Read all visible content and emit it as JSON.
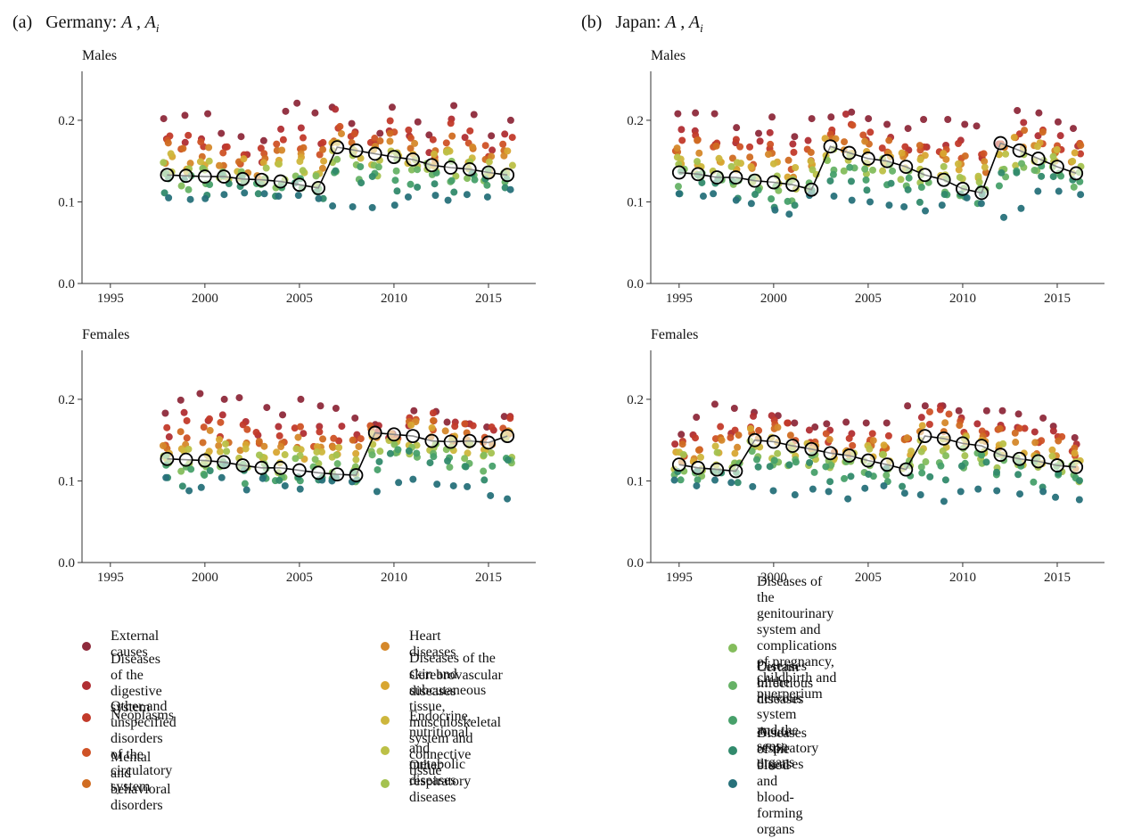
{
  "panels": [
    {
      "tag": "(a)",
      "title": "Germany: ",
      "title_symbols": "A , A",
      "title_sub": "i",
      "subpanels": [
        "Males",
        "Females"
      ]
    },
    {
      "tag": "(b)",
      "title": "Japan: ",
      "title_symbols": "A , A",
      "title_sub": "i",
      "subpanels": [
        "Males",
        "Females"
      ]
    }
  ],
  "legend": [
    {
      "label": "External causes",
      "color": "#8e2a3b"
    },
    {
      "label": "Diseases of the digestive system",
      "color": "#b02e33"
    },
    {
      "label": "Neoplasms",
      "color": "#c23a2a"
    },
    {
      "label": "Other and unspecified disorders of the\ncirculatory system",
      "color": "#cf5226"
    },
    {
      "label": "Mental and behavioral disorders",
      "color": "#d06c22"
    },
    {
      "label": "Heart diseases",
      "color": "#d5882a"
    },
    {
      "label": "Cerebrovascular diseases",
      "color": "#d8a631"
    },
    {
      "label": "Diseases of the skin and subcutaneous tissue,\nmusculoskeletal system and connective tissue",
      "color": "#cdb63c"
    },
    {
      "label": "Endocrine, nutritional and metabolic diseases",
      "color": "#bcc046"
    },
    {
      "label": "Other respiratory diseases",
      "color": "#a4c250"
    },
    {
      "label": "Diseases of the genitourinary system and\ncomplications of pregnancy, childbirth and\npuerperium",
      "color": "#84bd5c"
    },
    {
      "label": "Certain infectious diseases",
      "color": "#66b266"
    },
    {
      "label": "Diseases of the nervous system and the sense\norgans",
      "color": "#47a06a"
    },
    {
      "label": "Acute respiratory diseases",
      "color": "#318a6c"
    },
    {
      "label": "Diseases of the blood and blood-forming organs",
      "color": "#27717a"
    }
  ],
  "chart_data": [
    {
      "type": "scatter",
      "title": "Germany: A , Ai — Males",
      "xlim": [
        1993.5,
        2017.5
      ],
      "ylim": [
        0.0,
        0.26
      ],
      "xticks": [
        1995,
        2000,
        2005,
        2010,
        2015
      ],
      "yticks": [
        "0.0",
        "0.1",
        "0.2"
      ],
      "x": [
        1998,
        1999,
        2000,
        2001,
        2002,
        2003,
        2004,
        2005,
        2006,
        2007,
        2008,
        2009,
        2010,
        2011,
        2012,
        2013,
        2014,
        2015,
        2016
      ],
      "aggregate_A": [
        0.133,
        0.132,
        0.131,
        0.131,
        0.128,
        0.127,
        0.125,
        0.121,
        0.117,
        0.167,
        0.163,
        0.159,
        0.155,
        0.152,
        0.145,
        0.142,
        0.14,
        0.136,
        0.133
      ],
      "cause_min": [
        0.105,
        0.103,
        0.104,
        0.109,
        0.111,
        0.11,
        0.107,
        0.108,
        0.104,
        0.095,
        0.094,
        0.093,
        0.096,
        0.106,
        0.108,
        0.102,
        0.109,
        0.106,
        0.115
      ],
      "cause_max": [
        0.202,
        0.206,
        0.208,
        0.184,
        0.18,
        0.175,
        0.211,
        0.221,
        0.209,
        0.216,
        0.196,
        0.184,
        0.216,
        0.198,
        0.182,
        0.218,
        0.207,
        0.181,
        0.2
      ]
    },
    {
      "type": "scatter",
      "title": "Germany: A , Ai — Females",
      "xlim": [
        1993.5,
        2017.5
      ],
      "ylim": [
        0.0,
        0.26
      ],
      "xticks": [
        1995,
        2000,
        2005,
        2010,
        2015
      ],
      "yticks": [
        "0.0",
        "0.1",
        "0.2"
      ],
      "x": [
        1998,
        1999,
        2000,
        2001,
        2002,
        2003,
        2004,
        2005,
        2006,
        2007,
        2008,
        2009,
        2010,
        2011,
        2012,
        2013,
        2014,
        2015,
        2016
      ],
      "aggregate_A": [
        0.127,
        0.126,
        0.125,
        0.123,
        0.119,
        0.116,
        0.116,
        0.113,
        0.11,
        0.108,
        0.107,
        0.159,
        0.157,
        0.155,
        0.149,
        0.148,
        0.149,
        0.147,
        0.155
      ],
      "cause_min": [
        0.104,
        0.088,
        0.092,
        0.104,
        0.089,
        0.103,
        0.094,
        0.09,
        0.101,
        0.1,
        0.099,
        0.087,
        0.098,
        0.102,
        0.096,
        0.094,
        0.093,
        0.082,
        0.078
      ],
      "cause_max": [
        0.183,
        0.199,
        0.207,
        0.2,
        0.202,
        0.19,
        0.181,
        0.2,
        0.192,
        0.189,
        0.177,
        0.169,
        0.158,
        0.186,
        0.185,
        0.172,
        0.17,
        0.166,
        0.179
      ]
    },
    {
      "type": "scatter",
      "title": "Japan: A , Ai — Males",
      "xlim": [
        1993.5,
        2017.5
      ],
      "ylim": [
        0.0,
        0.26
      ],
      "xticks": [
        1995,
        2000,
        2005,
        2010,
        2015
      ],
      "yticks": [
        "0.0",
        "0.1",
        "0.2"
      ],
      "x": [
        1995,
        1996,
        1997,
        1998,
        1999,
        2000,
        2001,
        2002,
        2003,
        2004,
        2005,
        2006,
        2007,
        2008,
        2009,
        2010,
        2011,
        2012,
        2013,
        2014,
        2015,
        2016
      ],
      "aggregate_A": [
        0.136,
        0.134,
        0.13,
        0.13,
        0.126,
        0.124,
        0.121,
        0.115,
        0.168,
        0.16,
        0.153,
        0.15,
        0.143,
        0.133,
        0.127,
        0.116,
        0.111,
        0.172,
        0.163,
        0.153,
        0.143,
        0.135
      ],
      "cause_min": [
        0.11,
        0.107,
        0.11,
        0.102,
        0.098,
        0.09,
        0.085,
        0.108,
        0.107,
        0.102,
        0.1,
        0.096,
        0.094,
        0.089,
        0.096,
        0.105,
        0.098,
        0.081,
        0.092,
        0.113,
        0.113,
        0.109
      ],
      "cause_max": [
        0.208,
        0.209,
        0.208,
        0.191,
        0.184,
        0.204,
        0.18,
        0.202,
        0.204,
        0.21,
        0.202,
        0.195,
        0.19,
        0.201,
        0.201,
        0.195,
        0.193,
        0.171,
        0.212,
        0.209,
        0.198,
        0.19
      ]
    },
    {
      "type": "scatter",
      "title": "Japan: A , Ai — Females",
      "xlim": [
        1993.5,
        2017.5
      ],
      "ylim": [
        0.0,
        0.26
      ],
      "xticks": [
        1995,
        2000,
        2005,
        2010,
        2015
      ],
      "yticks": [
        "0.0",
        "0.1",
        "0.2"
      ],
      "x": [
        1995,
        1996,
        1997,
        1998,
        1999,
        2000,
        2001,
        2002,
        2003,
        2004,
        2005,
        2006,
        2007,
        2008,
        2009,
        2010,
        2011,
        2012,
        2013,
        2014,
        2015,
        2016
      ],
      "aggregate_A": [
        0.12,
        0.116,
        0.114,
        0.112,
        0.15,
        0.148,
        0.143,
        0.139,
        0.134,
        0.131,
        0.125,
        0.12,
        0.114,
        0.155,
        0.152,
        0.146,
        0.143,
        0.132,
        0.127,
        0.124,
        0.119,
        0.117
      ],
      "cause_min": [
        0.101,
        0.094,
        0.101,
        0.098,
        0.093,
        0.088,
        0.083,
        0.09,
        0.087,
        0.078,
        0.091,
        0.094,
        0.085,
        0.083,
        0.075,
        0.087,
        0.09,
        0.088,
        0.084,
        0.087,
        0.08,
        0.077
      ],
      "cause_max": [
        0.157,
        0.178,
        0.194,
        0.189,
        0.184,
        0.18,
        0.171,
        0.166,
        0.17,
        0.172,
        0.171,
        0.171,
        0.192,
        0.192,
        0.192,
        0.186,
        0.186,
        0.186,
        0.182,
        0.177,
        0.167,
        0.153
      ]
    }
  ]
}
